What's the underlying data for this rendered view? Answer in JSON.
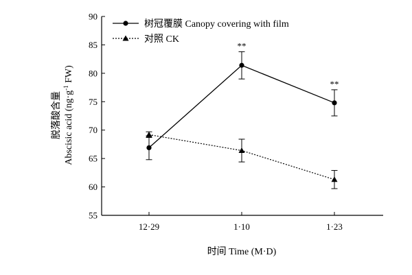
{
  "chart_data": {
    "type": "line",
    "xlabel": "时间 Time (M·D)",
    "ylabel": {
      "line1": "脱落酸含量",
      "line2_prefix": "Abscisic acid (ng·g",
      "line2_sup": "-1",
      "line2_suffix": " FW)"
    },
    "categories": [
      "12·29",
      "1·10",
      "1·23"
    ],
    "ylim": [
      55,
      90
    ],
    "yticks": [
      "55",
      "60",
      "65",
      "70",
      "75",
      "80",
      "85",
      "90"
    ],
    "legend_position": "top-left",
    "series": [
      {
        "name": "树冠覆膜 Canopy covering with film",
        "marker": "circle",
        "line": "solid",
        "values": [
          66.9,
          81.4,
          74.8
        ],
        "errors": [
          2.1,
          2.4,
          2.3
        ],
        "significance": [
          "",
          "**",
          "**"
        ]
      },
      {
        "name": "对照 CK",
        "marker": "triangle",
        "line": "dotted",
        "values": [
          69.2,
          66.4,
          61.3
        ],
        "errors": [
          0.5,
          2.0,
          1.6
        ],
        "significance": [
          "",
          "",
          ""
        ]
      }
    ],
    "colors": {
      "ink": "#000000"
    }
  }
}
